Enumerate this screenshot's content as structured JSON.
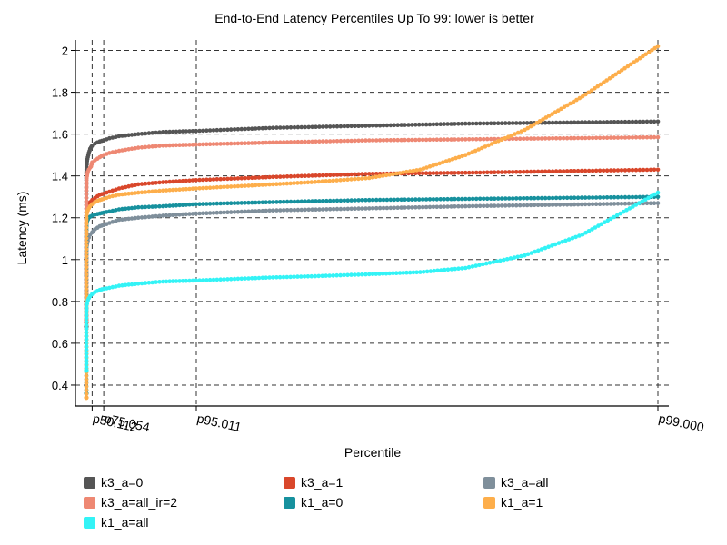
{
  "chart_data": {
    "type": "scatter",
    "title": "End-to-End Latency Percentiles Up To 99: lower is better",
    "xlabel": "Percentile",
    "ylabel": "Latency (ms)",
    "ylim": [
      0.3,
      2.05
    ],
    "y_ticks": [
      "0.4",
      "0.6",
      "0.8",
      "1",
      "1.2",
      "1.4",
      "1.6",
      "1.8",
      "2"
    ],
    "x_ticks": [
      "p50.112",
      "p75.054",
      "p95.011",
      "p99.000"
    ],
    "x_tick_positions": [
      50.112,
      75.054,
      95.011,
      99.0
    ],
    "x_scale": "reciprocal (1/(100-p))",
    "grid": true,
    "legend_position": "bottom",
    "series": [
      {
        "name": "k3_a=0",
        "color": "#555555",
        "x": [
          0.0,
          0.5,
          1.0,
          2.0,
          5.0,
          10.0,
          15.0,
          20.0,
          30.0,
          40.0,
          50.0,
          60.0,
          70.0,
          75.0,
          80.0,
          85.0,
          90.0,
          93.0,
          95.0,
          97.0,
          98.0,
          98.5,
          99.0
        ],
        "y": [
          0.68,
          1.38,
          1.4,
          1.42,
          1.44,
          1.47,
          1.48,
          1.49,
          1.51,
          1.53,
          1.545,
          1.555,
          1.565,
          1.57,
          1.58,
          1.59,
          1.6,
          1.61,
          1.615,
          1.63,
          1.64,
          1.65,
          1.66
        ]
      },
      {
        "name": "k3_a=1",
        "color": "#d9472b",
        "x": [
          0.0,
          0.5,
          1.0,
          2.0,
          5.0,
          10.0,
          20.0,
          30.0,
          40.0,
          50.0,
          60.0,
          70.0,
          75.0,
          80.0,
          85.0,
          90.0,
          93.0,
          95.0,
          97.0,
          98.0,
          98.5,
          99.0
        ],
        "y": [
          0.7,
          1.16,
          1.18,
          1.2,
          1.22,
          1.23,
          1.25,
          1.265,
          1.275,
          1.285,
          1.295,
          1.31,
          1.315,
          1.325,
          1.34,
          1.36,
          1.37,
          1.38,
          1.395,
          1.41,
          1.415,
          1.43
        ]
      },
      {
        "name": "k3_a=all",
        "color": "#7f8f9b",
        "x": [
          0.0,
          0.5,
          1.0,
          2.0,
          5.0,
          10.0,
          20.0,
          30.0,
          40.0,
          50.0,
          60.0,
          70.0,
          75.0,
          80.0,
          85.0,
          90.0,
          93.0,
          95.0,
          97.0,
          98.0,
          98.5,
          99.0
        ],
        "y": [
          0.93,
          1.0,
          1.02,
          1.04,
          1.06,
          1.07,
          1.09,
          1.105,
          1.12,
          1.13,
          1.145,
          1.16,
          1.165,
          1.175,
          1.19,
          1.2,
          1.21,
          1.22,
          1.235,
          1.245,
          1.255,
          1.27
        ]
      },
      {
        "name": "k3_a=all_ir=2",
        "color": "#ee8873",
        "x": [
          0.0,
          0.5,
          1.0,
          2.0,
          5.0,
          10.0,
          20.0,
          30.0,
          40.0,
          45.0,
          50.0,
          60.0,
          70.0,
          75.0,
          80.0,
          85.0,
          90.0,
          93.0,
          95.0,
          97.0,
          98.0,
          98.5,
          99.0
        ],
        "y": [
          0.71,
          1.33,
          1.35,
          1.37,
          1.39,
          1.4,
          1.42,
          1.43,
          1.44,
          1.445,
          1.465,
          1.475,
          1.49,
          1.5,
          1.51,
          1.52,
          1.535,
          1.545,
          1.55,
          1.56,
          1.57,
          1.575,
          1.585
        ]
      },
      {
        "name": "k1_a=0",
        "color": "#17919e",
        "x": [
          0.0,
          0.5,
          1.0,
          2.0,
          5.0,
          10.0,
          20.0,
          30.0,
          40.0,
          50.0,
          60.0,
          70.0,
          75.0,
          80.0,
          85.0,
          90.0,
          93.0,
          95.0,
          97.0,
          98.0,
          98.5,
          99.0
        ],
        "y": [
          0.36,
          1.13,
          1.14,
          1.15,
          1.17,
          1.18,
          1.19,
          1.2,
          1.205,
          1.21,
          1.215,
          1.22,
          1.225,
          1.23,
          1.24,
          1.25,
          1.255,
          1.265,
          1.275,
          1.285,
          1.29,
          1.3
        ]
      },
      {
        "name": "k1_a=1",
        "color": "#fdae4b",
        "x": [
          0.0,
          0.5,
          1.0,
          2.0,
          5.0,
          10.0,
          20.0,
          30.0,
          40.0,
          50.0,
          60.0,
          70.0,
          75.0,
          80.0,
          85.0,
          90.0,
          93.0,
          95.0,
          97.0,
          97.5,
          98.0,
          98.3,
          98.5,
          98.7,
          98.85,
          99.0
        ],
        "y": [
          0.34,
          1.17,
          1.19,
          1.2,
          1.215,
          1.225,
          1.235,
          1.245,
          1.255,
          1.265,
          1.275,
          1.285,
          1.29,
          1.3,
          1.31,
          1.32,
          1.33,
          1.34,
          1.36,
          1.37,
          1.39,
          1.43,
          1.5,
          1.62,
          1.78,
          2.02
        ]
      },
      {
        "name": "k1_a=all",
        "color": "#33f3f6",
        "x": [
          0.0,
          0.3,
          0.6,
          1.0,
          2.0,
          5.0,
          10.0,
          20.0,
          30.0,
          40.0,
          50.0,
          60.0,
          70.0,
          75.0,
          80.0,
          85.0,
          90.0,
          93.0,
          95.0,
          97.0,
          97.5,
          98.0,
          98.3,
          98.5,
          98.7,
          98.85,
          99.0
        ],
        "y": [
          0.47,
          0.72,
          0.75,
          0.76,
          0.77,
          0.785,
          0.79,
          0.805,
          0.815,
          0.825,
          0.835,
          0.845,
          0.855,
          0.86,
          0.865,
          0.875,
          0.885,
          0.895,
          0.9,
          0.915,
          0.92,
          0.93,
          0.94,
          0.96,
          1.02,
          1.12,
          1.32
        ]
      }
    ]
  }
}
